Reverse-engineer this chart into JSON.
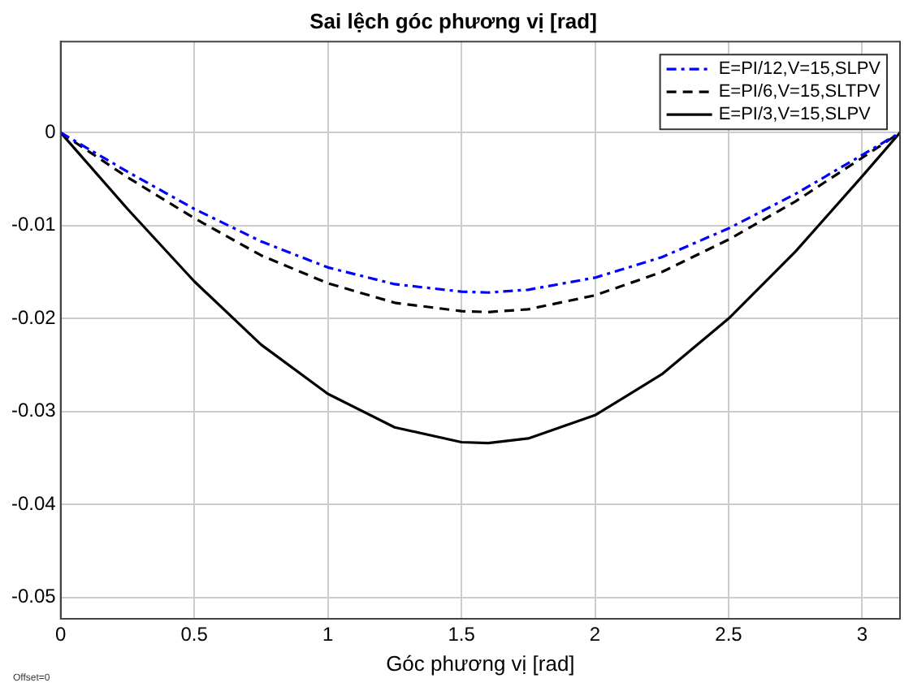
{
  "chart_data": {
    "type": "line",
    "title": "Sai lệch góc phương vị [rad]",
    "xlabel": "Góc phương vị [rad]",
    "x": [
      0,
      0.25,
      0.5,
      0.75,
      1,
      1.25,
      1.5,
      1.6,
      1.75,
      2,
      2.25,
      2.5,
      2.75,
      3,
      3.1416
    ],
    "series": [
      {
        "name": "E=PI/12,V=15,SLPV",
        "color": "#0000ff",
        "line_style": "dashdot",
        "values": [
          0,
          -0.0042,
          -0.0082,
          -0.0117,
          -0.0145,
          -0.0163,
          -0.0171,
          -0.0172,
          -0.0169,
          -0.0156,
          -0.0134,
          -0.0103,
          -0.0066,
          -0.0024,
          0
        ]
      },
      {
        "name": "E=PI/6,V=15,SLTPV",
        "color": "#000000",
        "line_style": "dashed",
        "values": [
          0,
          -0.0048,
          -0.0092,
          -0.0132,
          -0.0162,
          -0.0183,
          -0.0192,
          -0.0193,
          -0.019,
          -0.0175,
          -0.015,
          -0.0115,
          -0.0074,
          -0.0027,
          0
        ]
      },
      {
        "name": "E=PI/3,V=15,SLPV",
        "color": "#000000",
        "line_style": "solid",
        "values": [
          0,
          -0.0082,
          -0.016,
          -0.0228,
          -0.0281,
          -0.0317,
          -0.0333,
          -0.0334,
          -0.0329,
          -0.0304,
          -0.026,
          -0.02,
          -0.0128,
          -0.0047,
          0
        ]
      }
    ],
    "xlim": [
      0,
      3.1416
    ],
    "xticks": [
      0,
      0.5,
      1,
      1.5,
      2,
      2.5,
      3
    ],
    "ylim": [
      -0.0523,
      0.0098
    ],
    "yticks": [
      0,
      -0.01,
      -0.02,
      -0.03,
      -0.04,
      -0.05
    ],
    "grid": true,
    "legend": "top right",
    "marker": "none",
    "annotations": [
      "Offset=0"
    ]
  }
}
